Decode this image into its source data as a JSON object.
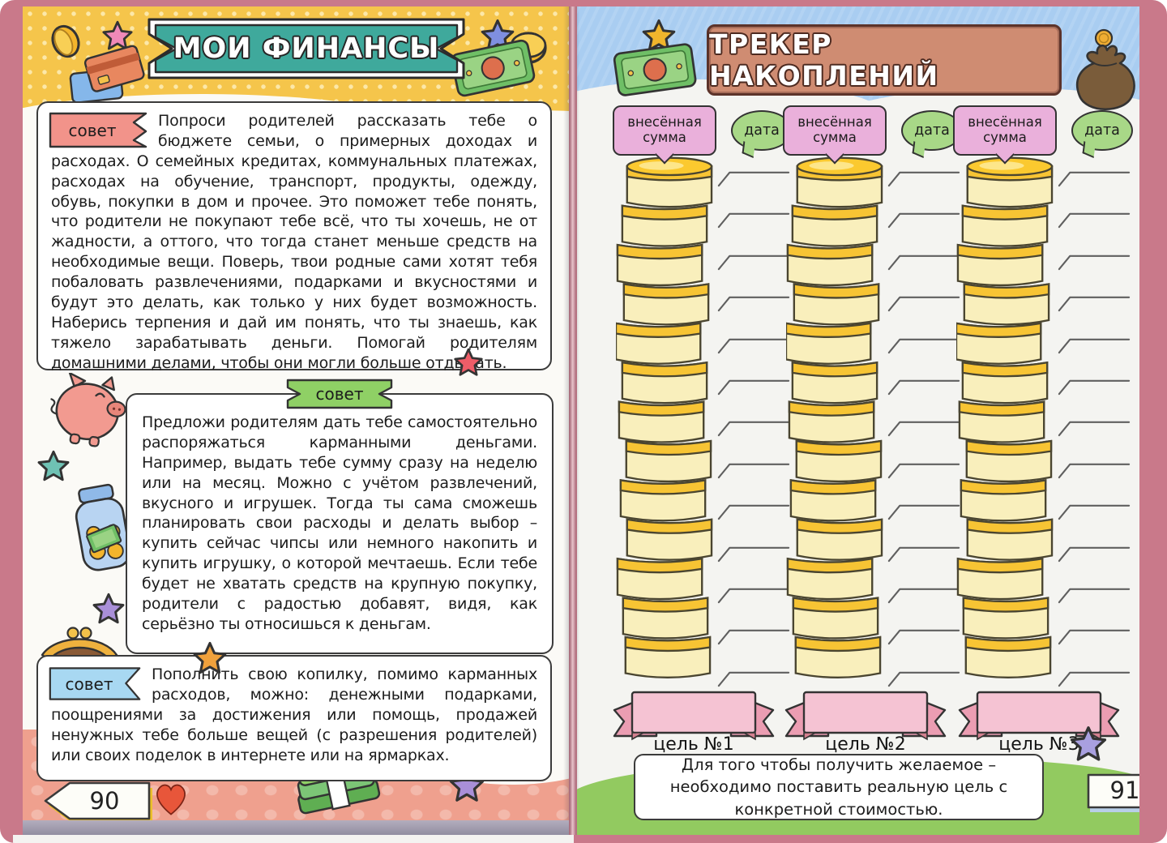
{
  "left_page": {
    "title": "МОИ ФИНАНСЫ",
    "page_number": "90",
    "tips": [
      {
        "tag": "совет",
        "text": "Попроси родителей рассказать тебе о бюджете семьи, о примерных доходах и расходах. О семейных кредитах, коммунальных платежах, расходах на обучение, транспорт, продукты, одежду, обувь, покупки в дом и прочее. Это поможет тебе понять, что родители не покупают тебе всё, что ты хочешь, не от жадности, а оттого, что тогда станет меньше средств на необходимые вещи. Поверь, твои родные сами хотят тебя побаловать развлечениями, подарками и вкусностями и будут это делать, как только у них будет возможность. Наберись терпения и дай им понять, что ты знаешь, как тяжело зарабатывать деньги. Помогай родителям домашними делами, чтобы они могли больше отдыхать."
      },
      {
        "tag": "совет",
        "text": "Предложи родителям дать тебе самостоятельно распоряжаться карманными деньгами. Например, выдать тебе сумму сразу на неделю или на месяц. Можно с учётом развлечений, вкусного и игрушек. Тогда ты сама сможешь планировать свои расходы и делать выбор – купить сейчас чипсы или немного накопить и купить игрушку, о которой мечтаешь. Если тебе будет не хватать средств на крупную покупку, родители с радостью добавят, видя, как серьёзно ты относишься к деньгам."
      },
      {
        "tag": "совет",
        "text": "Пополнить свою копилку, помимо карманных расходов, можно: денежными подарками, поощрениями за достижения или помощь, продажей ненужных тебе больше вещей (с разрешения родителей) или своих поделок в интернете или на ярмарках."
      }
    ],
    "decorations": [
      "coin-icon",
      "star-icon",
      "credit-cards-icon",
      "banknote-icon",
      "piggy-bank-icon",
      "coin-jar-icon",
      "purse-icon",
      "heart-icon",
      "money-stack-icon"
    ]
  },
  "right_page": {
    "title": "ТРЕКЕР НАКОПЛЕНИЙ",
    "page_number": "91",
    "tracker": {
      "coins_per_stack": 13,
      "lines_per_stack": 13,
      "columns": [
        {
          "amount_label": "внесённая сумма",
          "date_label": "дата",
          "goal_label": "цель №1"
        },
        {
          "amount_label": "внесённая сумма",
          "date_label": "дата",
          "goal_label": "цель №2"
        },
        {
          "amount_label": "внесённая сумма",
          "date_label": "дата",
          "goal_label": "цель №3"
        }
      ]
    },
    "footer_note": "Для того чтобы получить желаемое – необходимо поставить реальную цель с конкретной стоимостью.",
    "decorations": [
      "star-icon",
      "banknote-icon",
      "money-bag-icon"
    ]
  },
  "colors": {
    "frame_pink": "#c9798a",
    "banner_teal": "#3fa99c",
    "plaque_terracotta": "#cf8c72",
    "tip_tag_pink": "#f2938a",
    "tip_tag_green": "#8fd065",
    "tip_tag_blue": "#a8d8f2",
    "bubble_pink": "#eab0db",
    "bubble_green": "#a8d887",
    "coin_gold": "#f7c434",
    "coin_face": "#f9efbc",
    "ribbon_pink": "#f5c3d3",
    "grass_green": "#92ca60",
    "sky_blue": "#a9cdf1",
    "header_yellow": "#f5c54b",
    "footer_salmon": "#efa08e"
  }
}
